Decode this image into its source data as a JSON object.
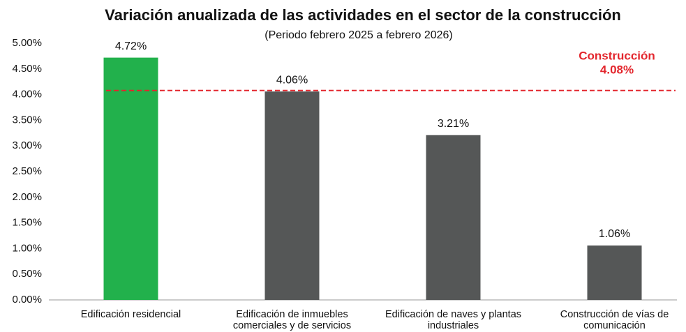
{
  "chart_data": {
    "type": "bar",
    "title": "Variación anualizada de las actividades en el sector de la construcción",
    "subtitle": "(Periodo febrero 2025 a febrero 2026)",
    "categories": [
      "Edificación residencial",
      "Edificación de inmuebles comerciales y de servicios",
      "Edificación de naves y plantas industriales",
      "Construcción de vías de comunicación"
    ],
    "values": [
      4.72,
      4.06,
      3.21,
      1.06
    ],
    "value_labels": [
      "4.72%",
      "4.06%",
      "3.21%",
      "1.06%"
    ],
    "colors": [
      "#22b14c",
      "#555757",
      "#555757",
      "#555757"
    ],
    "ylim": [
      0,
      5
    ],
    "yticks": [
      {
        "value": 0,
        "label": "0.00%"
      },
      {
        "value": 0.5,
        "label": "0.50%"
      },
      {
        "value": 1,
        "label": "1.00%"
      },
      {
        "value": 1.5,
        "label": "1.50%"
      },
      {
        "value": 2,
        "label": "2.00%"
      },
      {
        "value": 2.5,
        "label": "2.50%"
      },
      {
        "value": 3,
        "label": "3.00%"
      },
      {
        "value": 3.5,
        "label": "3.50%"
      },
      {
        "value": 4,
        "label": "4.00%"
      },
      {
        "value": 4.5,
        "label": "4.50%"
      },
      {
        "value": 5,
        "label": "5.00%"
      }
    ],
    "grid": false,
    "reference_line": {
      "name": "Construcción",
      "value": 4.08,
      "label": "4.08%",
      "color": "#e3262d"
    }
  }
}
